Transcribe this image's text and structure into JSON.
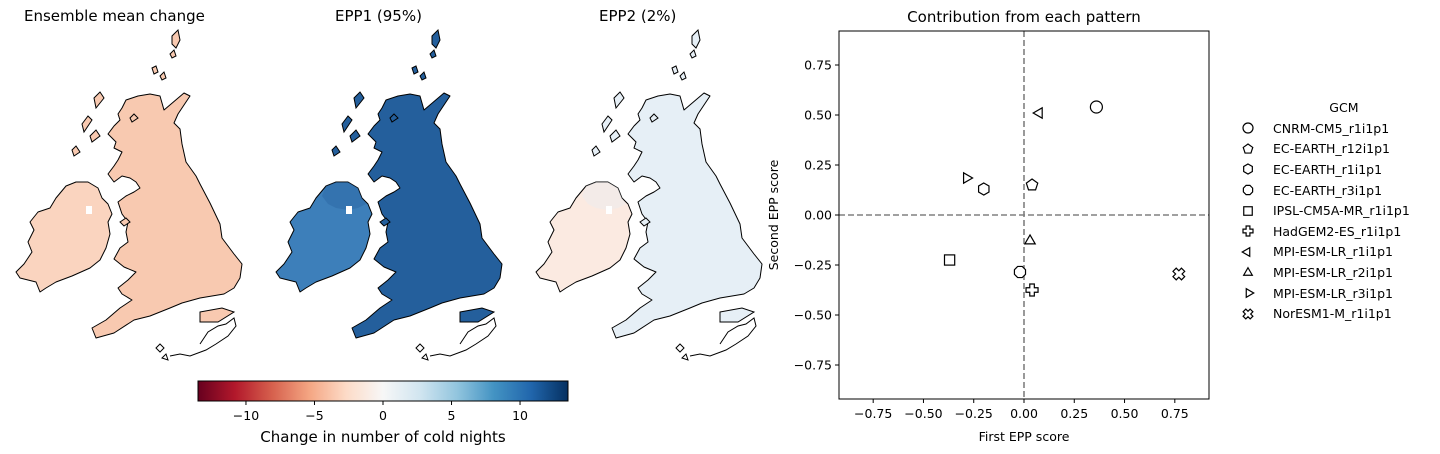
{
  "maps": [
    {
      "title": "Ensemble mean change",
      "fill": "#f8c9b0",
      "ireland_fill": "#fad4bf"
    },
    {
      "title": "EPP1 (95%)",
      "fill": "#245f9c",
      "ireland_fill": "#3d7fba"
    },
    {
      "title": "EPP2 (2%)",
      "fill": "#e6eff6",
      "ireland_fill": "#fbeae1"
    }
  ],
  "colorbar": {
    "label": "Change in number of cold nights",
    "range": [
      -13.5,
      13.5
    ],
    "ticks": [
      -10,
      -5,
      0,
      5,
      10
    ],
    "colormap": [
      "#67001f",
      "#b2182b",
      "#d6604d",
      "#f4a582",
      "#fddbc7",
      "#f7f7f7",
      "#d1e5f0",
      "#92c5de",
      "#4393c3",
      "#2166ac",
      "#053061"
    ]
  },
  "chart_data": {
    "type": "scatter",
    "title": "Contribution from each pattern",
    "xlabel": "First EPP score",
    "ylabel": "Second EPP score",
    "xlim": [
      -0.92,
      0.92
    ],
    "ylim": [
      -0.92,
      0.92
    ],
    "xticks": [
      -0.75,
      -0.5,
      -0.25,
      0.0,
      0.25,
      0.5,
      0.75
    ],
    "yticks": [
      -0.75,
      -0.5,
      -0.25,
      0.0,
      0.25,
      0.5,
      0.75
    ],
    "tick_labels": [
      "−0.75",
      "−0.50",
      "−0.25",
      "0.00",
      "0.25",
      "0.50",
      "0.75"
    ],
    "reference_lines": {
      "x": 0,
      "y": 0,
      "style": "dashed",
      "color": "#808080"
    },
    "legend_title": "GCM",
    "legend_position": "outside-right",
    "series": [
      {
        "name": "CNRM-CM5_r1i1p1",
        "marker": "circle",
        "x": 0.36,
        "y": 0.54
      },
      {
        "name": "EC-EARTH_r12i1p1",
        "marker": "pentagon",
        "x": 0.04,
        "y": 0.15
      },
      {
        "name": "EC-EARTH_r1i1p1",
        "marker": "hexagon",
        "x": -0.2,
        "y": 0.13
      },
      {
        "name": "EC-EARTH_r3i1p1",
        "marker": "octagon",
        "x": -0.02,
        "y": -0.285
      },
      {
        "name": "IPSL-CM5A-MR_r1i1p1",
        "marker": "square",
        "x": -0.37,
        "y": -0.225
      },
      {
        "name": "HadGEM2-ES_r1i1p1",
        "marker": "plus",
        "x": 0.04,
        "y": -0.375
      },
      {
        "name": "MPI-ESM-LR_r1i1p1",
        "marker": "triangle-left",
        "x": 0.08,
        "y": 0.51
      },
      {
        "name": "MPI-ESM-LR_r2i1p1",
        "marker": "triangle-up",
        "x": 0.03,
        "y": -0.125
      },
      {
        "name": "MPI-ESM-LR_r3i1p1",
        "marker": "triangle-right",
        "x": -0.29,
        "y": 0.185
      },
      {
        "name": "NorESM1-M_r1i1p1",
        "marker": "x-filled",
        "x": 0.77,
        "y": -0.295
      }
    ]
  }
}
